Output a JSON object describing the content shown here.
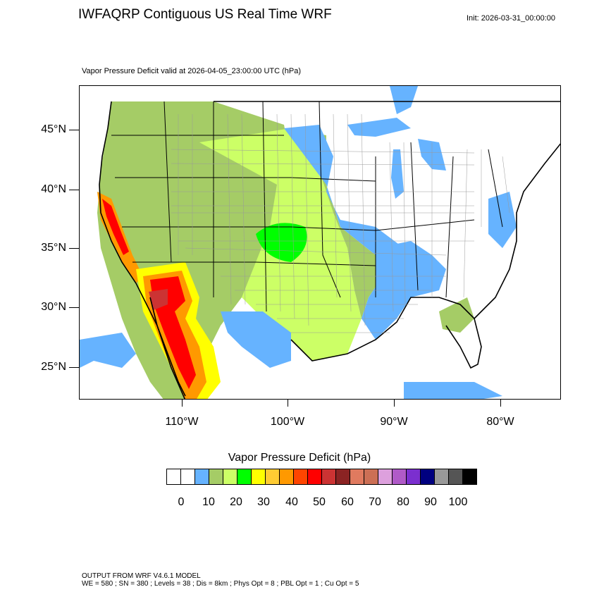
{
  "title": "IWFAQRP Contiguous US Real Time WRF",
  "init": "Init: 2026-03-31_00:00:00",
  "valid": "Vapor Pressure Deficit valid at 2026-04-05_23:00:00 UTC   (hPa)",
  "map": {
    "latitude_labels": [
      "45°N",
      "40°N",
      "35°N",
      "30°N",
      "25°N"
    ],
    "longitude_labels": [
      "110°W",
      "100°W",
      "90°W",
      "80°W"
    ],
    "colors": {
      "water": "#66b3ff",
      "land_white": "#ffffff",
      "olive": "#a5cc66",
      "light_green": "#ccff66",
      "green": "#00ff00",
      "yellow": "#ffff00",
      "orange": "#ff9900",
      "red": "#ff0000",
      "dark_red": "#cc3333"
    }
  },
  "legend": {
    "title": "Vapor Pressure Deficit  (hPa)",
    "colors": [
      "#ffffff",
      "#ffffff",
      "#66b3ff",
      "#a5cc66",
      "#ccff66",
      "#00ff00",
      "#ffff00",
      "#ffcc33",
      "#ff9900",
      "#ff4500",
      "#ff0000",
      "#cc3333",
      "#8b2323",
      "#e07a5f",
      "#cc6f55",
      "#dda0dd",
      "#b05ac8",
      "#7b2fcf",
      "#000080",
      "#999999",
      "#555555",
      "#000000"
    ],
    "tick_labels": [
      "0",
      "10",
      "20",
      "30",
      "40",
      "50",
      "60",
      "70",
      "80",
      "90",
      "100"
    ]
  },
  "footer": {
    "line1": "OUTPUT FROM WRF V4.6.1 MODEL",
    "line2": "WE = 580 ; SN = 380 ; Levels = 38 ; Dis = 8km ; Phys Opt = 8 ; PBL Opt = 1 ; Cu Opt = 5"
  }
}
